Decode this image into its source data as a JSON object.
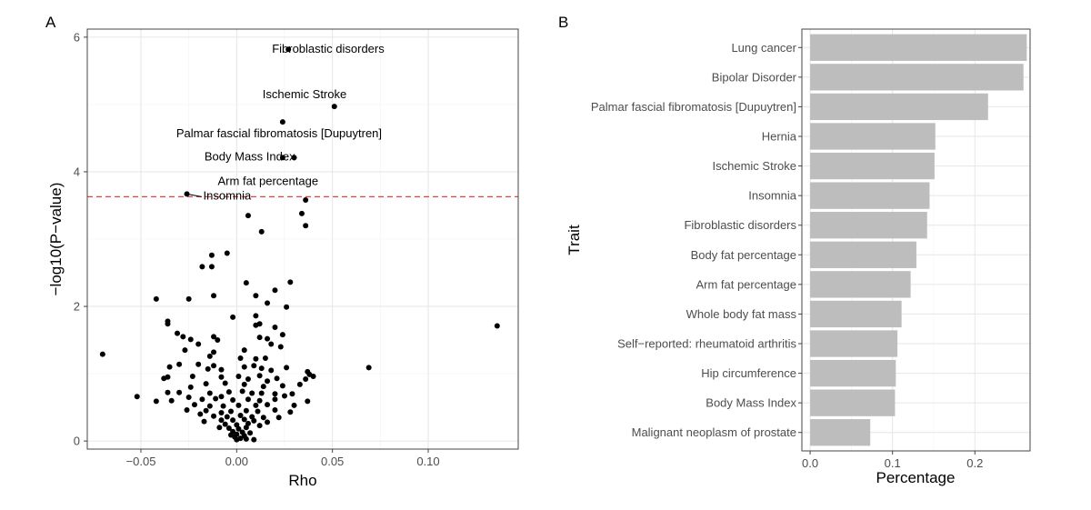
{
  "chart_data": [
    {
      "panel_label": "A",
      "type": "scatter",
      "xlabel": "Rho",
      "ylabel": "−log10(P−value)",
      "xlim": [
        -0.078,
        0.147
      ],
      "ylim": [
        -0.12,
        6.12
      ],
      "xticks": [
        -0.05,
        0.0,
        0.05,
        0.1
      ],
      "xtick_labels": [
        "−0.05",
        "0.00",
        "0.05",
        "0.10"
      ],
      "yticks": [
        0,
        2,
        4,
        6
      ],
      "ytick_labels": [
        "0",
        "2",
        "4",
        "6"
      ],
      "grid": true,
      "threshold": {
        "y": 3.63,
        "color": "#e0463a",
        "style": "dashed"
      },
      "labeled_points": [
        {
          "x": 0.027,
          "y": 5.82,
          "label": "Fibroblastic disorders"
        },
        {
          "x": 0.051,
          "y": 4.97,
          "label": "Ischemic Stroke"
        },
        {
          "x": 0.024,
          "y": 4.74,
          "label": "Palmar fascial fibromatosis [Dupuytren]"
        },
        {
          "x": 0.024,
          "y": 4.21,
          "label": "Body Mass Index"
        },
        {
          "x": 0.03,
          "y": 4.21,
          "label": "Arm fat percentage"
        },
        {
          "x": -0.026,
          "y": 3.67,
          "label": "Insomnia"
        }
      ],
      "points": [
        [
          0.136,
          1.71
        ],
        [
          0.069,
          1.09
        ],
        [
          -0.07,
          1.29
        ],
        [
          -0.052,
          0.66
        ],
        [
          0.036,
          3.58
        ],
        [
          0.034,
          3.38
        ],
        [
          0.036,
          3.2
        ],
        [
          0.006,
          3.35
        ],
        [
          0.013,
          3.11
        ],
        [
          -0.005,
          2.79
        ],
        [
          -0.013,
          2.76
        ],
        [
          -0.018,
          2.59
        ],
        [
          -0.013,
          2.59
        ],
        [
          0.028,
          2.36
        ],
        [
          0.005,
          2.35
        ],
        [
          0.02,
          2.24
        ],
        [
          -0.042,
          2.11
        ],
        [
          -0.025,
          2.11
        ],
        [
          -0.012,
          2.16
        ],
        [
          0.01,
          2.16
        ],
        [
          0.016,
          2.05
        ],
        [
          0.026,
          1.99
        ],
        [
          -0.002,
          1.84
        ],
        [
          0.01,
          1.86
        ],
        [
          0.02,
          1.69
        ],
        [
          -0.036,
          1.78
        ],
        [
          -0.036,
          1.74
        ],
        [
          0.012,
          1.74
        ],
        [
          0.01,
          1.72
        ],
        [
          -0.031,
          1.6
        ],
        [
          -0.028,
          1.55
        ],
        [
          -0.012,
          1.55
        ],
        [
          -0.024,
          1.51
        ],
        [
          -0.01,
          1.5
        ],
        [
          0.012,
          1.54
        ],
        [
          0.016,
          1.52
        ],
        [
          0.024,
          1.58
        ],
        [
          -0.02,
          1.44
        ],
        [
          0.018,
          1.44
        ],
        [
          0.023,
          1.4
        ],
        [
          -0.027,
          1.35
        ],
        [
          0.004,
          1.35
        ],
        [
          -0.012,
          1.32
        ],
        [
          -0.014,
          1.26
        ],
        [
          0.002,
          1.23
        ],
        [
          0.01,
          1.22
        ],
        [
          0.015,
          1.23
        ],
        [
          -0.02,
          1.14
        ],
        [
          -0.015,
          1.07
        ],
        [
          -0.03,
          1.14
        ],
        [
          -0.035,
          1.1
        ],
        [
          -0.012,
          1.12
        ],
        [
          -0.008,
          1.06
        ],
        [
          0.004,
          1.1
        ],
        [
          0.009,
          1.12
        ],
        [
          0.013,
          1.08
        ],
        [
          0.018,
          1.05
        ],
        [
          0.026,
          1.09
        ],
        [
          -0.038,
          0.93
        ],
        [
          -0.036,
          0.95
        ],
        [
          -0.023,
          0.96
        ],
        [
          -0.008,
          0.95
        ],
        [
          0.001,
          0.96
        ],
        [
          0.006,
          0.92
        ],
        [
          0.012,
          0.97
        ],
        [
          0.021,
          0.93
        ],
        [
          0.036,
          0.92
        ],
        [
          0.038,
          0.99
        ],
        [
          0.04,
          0.96
        ],
        [
          0.037,
          1.03
        ],
        [
          0.033,
          0.84
        ],
        [
          0.024,
          0.82
        ],
        [
          0.014,
          0.81
        ],
        [
          0.004,
          0.84
        ],
        [
          -0.006,
          0.86
        ],
        [
          -0.016,
          0.85
        ],
        [
          -0.024,
          0.8
        ],
        [
          -0.036,
          0.72
        ],
        [
          -0.03,
          0.72
        ],
        [
          -0.014,
          0.71
        ],
        [
          -0.004,
          0.73
        ],
        [
          0.003,
          0.74
        ],
        [
          0.008,
          0.71
        ],
        [
          0.013,
          0.71
        ],
        [
          0.02,
          0.7
        ],
        [
          0.029,
          0.7
        ],
        [
          -0.034,
          0.6
        ],
        [
          -0.042,
          0.59
        ],
        [
          -0.018,
          0.62
        ],
        [
          -0.011,
          0.63
        ],
        [
          -0.002,
          0.61
        ],
        [
          0.006,
          0.62
        ],
        [
          0.012,
          0.6
        ],
        [
          0.02,
          0.62
        ],
        [
          0.025,
          0.67
        ],
        [
          -0.022,
          0.54
        ],
        [
          -0.014,
          0.52
        ],
        [
          -0.007,
          0.52
        ],
        [
          0.001,
          0.53
        ],
        [
          0.01,
          0.53
        ],
        [
          0.016,
          0.54
        ],
        [
          0.037,
          0.59
        ],
        [
          0.03,
          0.53
        ],
        [
          -0.016,
          0.45
        ],
        [
          -0.008,
          0.42
        ],
        [
          -0.003,
          0.44
        ],
        [
          0.005,
          0.45
        ],
        [
          0.011,
          0.44
        ],
        [
          0.02,
          0.46
        ],
        [
          0.028,
          0.43
        ],
        [
          -0.012,
          0.37
        ],
        [
          -0.005,
          0.36
        ],
        [
          0.002,
          0.38
        ],
        [
          0.008,
          0.36
        ],
        [
          0.014,
          0.35
        ],
        [
          -0.008,
          0.31
        ],
        [
          -0.002,
          0.31
        ],
        [
          0.004,
          0.32
        ],
        [
          0.009,
          0.3
        ],
        [
          -0.017,
          0.29
        ],
        [
          -0.006,
          0.25
        ],
        [
          0.0,
          0.24
        ],
        [
          0.006,
          0.26
        ],
        [
          0.012,
          0.23
        ],
        [
          -0.004,
          0.19
        ],
        [
          0.001,
          0.18
        ],
        [
          0.005,
          0.2
        ],
        [
          -0.002,
          0.14
        ],
        [
          0.003,
          0.13
        ],
        [
          0.0,
          0.1
        ],
        [
          0.004,
          0.08
        ],
        [
          -0.001,
          0.06
        ],
        [
          0.002,
          0.04
        ],
        [
          0.005,
          0.03
        ],
        [
          0.0,
          0.02
        ],
        [
          -0.003,
          0.09
        ],
        [
          0.007,
          0.12
        ],
        [
          -0.009,
          0.2
        ],
        [
          -0.019,
          0.4
        ],
        [
          -0.026,
          0.46
        ],
        [
          0.016,
          0.28
        ],
        [
          0.022,
          0.35
        ],
        [
          -0.008,
          0.66
        ],
        [
          0.016,
          0.89
        ],
        [
          -0.025,
          0.65
        ],
        [
          0.009,
          0.02
        ]
      ]
    },
    {
      "panel_label": "B",
      "type": "bar",
      "orientation": "horizontal",
      "xlabel": "Percentage",
      "ylabel": "Trait",
      "xlim": [
        -0.01,
        0.267
      ],
      "xticks": [
        0.0,
        0.1,
        0.2
      ],
      "xtick_labels": [
        "0.0",
        "0.1",
        "0.2"
      ],
      "grid": true,
      "bar_color": "#bdbdbd",
      "categories": [
        "Lung cancer",
        "Bipolar Disorder",
        "Palmar fascial fibromatosis [Dupuytren]",
        "Hernia",
        "Ischemic Stroke",
        "Insomnia",
        "Fibroblastic disorders",
        "Body fat percentage",
        "Arm fat percentage",
        "Whole body fat mass",
        "Self−reported: rheumatoid arthritis",
        "Hip circumference",
        "Body Mass Index",
        "Malignant neoplasm of prostate"
      ],
      "values": [
        0.263,
        0.259,
        0.216,
        0.152,
        0.151,
        0.145,
        0.142,
        0.129,
        0.122,
        0.111,
        0.106,
        0.104,
        0.103,
        0.073
      ]
    }
  ]
}
